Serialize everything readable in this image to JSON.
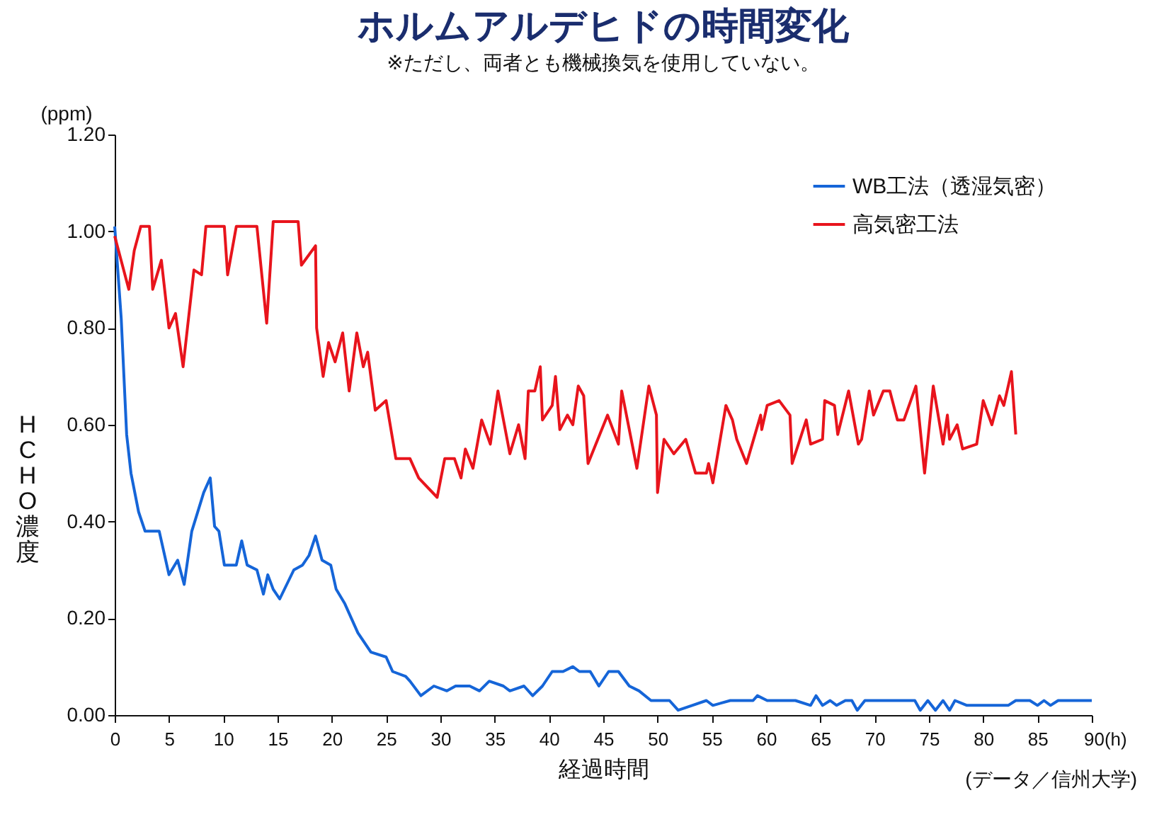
{
  "chart_data": {
    "type": "line",
    "title": "ホルムアルデヒドの時間変化",
    "subtitle": "※ただし、両者とも機械換気を使用していない。",
    "xlabel": "経過時間",
    "ylabel": "HCHO濃度",
    "annotations": [
      "(ppm)",
      "(データ／信州大学)"
    ],
    "xlim": [
      0,
      90
    ],
    "xticks": [
      0,
      5,
      10,
      15,
      20,
      25,
      30,
      35,
      40,
      45,
      50,
      55,
      60,
      65,
      70,
      75,
      80,
      85,
      {
        "value": 90,
        "label": "90(h)"
      }
    ],
    "ylim": [
      0,
      1.2
    ],
    "yticks": [
      {
        "value": 0,
        "label": "0.00"
      },
      {
        "value": 0.2,
        "label": "0.20"
      },
      {
        "value": 0.4,
        "label": "0.40"
      },
      {
        "value": 0.6,
        "label": "0.60"
      },
      {
        "value": 0.8,
        "label": "0.80"
      },
      {
        "value": 1,
        "label": "1.00"
      },
      {
        "value": 1.2,
        "label": "1.20"
      }
    ],
    "grid": false,
    "legend": "top right",
    "marker": "none",
    "line_style": "solid",
    "series": [
      {
        "name": "WB工法（透湿気密）",
        "color": "#1565d8",
        "x": [
          0,
          0.6,
          1.1,
          1.5,
          2.2,
          2.8,
          4.1,
          5,
          5.8,
          6.4,
          7.1,
          8.2,
          8.8,
          9.2,
          9.6,
          10.1,
          11.2,
          11.7,
          12.2,
          13.1,
          13.7,
          14.1,
          14.6,
          15.2,
          16.5,
          17.3,
          17.9,
          18.5,
          19.1,
          19.9,
          20.4,
          21.2,
          22.4,
          23.6,
          25,
          25.6,
          26.8,
          27.2,
          28.2,
          29.4,
          30.6,
          31.4,
          32.7,
          33.6,
          34.5,
          35.8,
          36.4,
          37.7,
          38.5,
          39.4,
          40.3,
          41.3,
          42.2,
          42.8,
          43.8,
          44.6,
          45.5,
          46.4,
          47.4,
          48.3,
          49.4,
          51.1,
          51.9,
          53.2,
          54.5,
          55.1,
          56.7,
          58.8,
          59.2,
          60.1,
          62.7,
          64.1,
          64.6,
          65.2,
          65.9,
          66.5,
          67.3,
          67.9,
          68.4,
          69.1,
          73.7,
          74.2,
          74.9,
          75.6,
          76.3,
          76.9,
          77.4,
          78.5,
          82.3,
          83,
          84.3,
          85,
          85.6,
          86.2,
          86.9,
          90
        ],
        "values": [
          1.01,
          0.82,
          0.58,
          0.5,
          0.42,
          0.38,
          0.38,
          0.29,
          0.32,
          0.27,
          0.38,
          0.46,
          0.49,
          0.39,
          0.38,
          0.31,
          0.31,
          0.36,
          0.31,
          0.3,
          0.25,
          0.29,
          0.26,
          0.24,
          0.3,
          0.31,
          0.33,
          0.37,
          0.32,
          0.31,
          0.26,
          0.23,
          0.17,
          0.13,
          0.12,
          0.09,
          0.08,
          0.07,
          0.04,
          0.06,
          0.05,
          0.06,
          0.06,
          0.05,
          0.07,
          0.06,
          0.05,
          0.06,
          0.04,
          0.06,
          0.09,
          0.09,
          0.1,
          0.09,
          0.09,
          0.06,
          0.09,
          0.09,
          0.06,
          0.05,
          0.03,
          0.03,
          0.01,
          0.02,
          0.03,
          0.02,
          0.03,
          0.03,
          0.04,
          0.03,
          0.03,
          0.02,
          0.04,
          0.02,
          0.03,
          0.02,
          0.03,
          0.03,
          0.01,
          0.03,
          0.03,
          0.01,
          0.03,
          0.01,
          0.03,
          0.01,
          0.03,
          0.02,
          0.02,
          0.03,
          0.03,
          0.02,
          0.03,
          0.02,
          0.03,
          0.03
        ]
      },
      {
        "name": "高気密工法",
        "color": "#e8141c",
        "x": [
          0,
          1.3,
          1.8,
          2.4,
          3.2,
          3.5,
          4.3,
          5,
          5.6,
          6.3,
          7.3,
          8,
          8.4,
          10.1,
          10.4,
          11.2,
          13.1,
          14,
          14.6,
          16.9,
          17.2,
          18.5,
          18.6,
          19.2,
          19.7,
          20.3,
          21,
          21.6,
          22.3,
          22.9,
          23.3,
          24,
          25,
          25.9,
          27.2,
          28,
          29.7,
          30.4,
          31.3,
          31.9,
          32.3,
          33,
          33.8,
          34.6,
          35.3,
          36.4,
          37.2,
          37.8,
          38.1,
          38.7,
          39.2,
          39.4,
          40.3,
          40.6,
          41,
          41.7,
          42.2,
          42.7,
          43.2,
          43.6,
          45.4,
          46.4,
          46.7,
          48.1,
          49.2,
          49.9,
          50,
          50.6,
          51.5,
          52.6,
          53.5,
          54.5,
          54.7,
          55.1,
          56.3,
          56.9,
          57.3,
          58.2,
          59.5,
          59.6,
          60.1,
          61.2,
          62.2,
          62.4,
          63.7,
          64.1,
          65.2,
          65.4,
          66.3,
          66.6,
          67.6,
          68.5,
          68.8,
          69.5,
          69.9,
          70.8,
          71.4,
          72.1,
          72.7,
          73.8,
          74.6,
          75.4,
          76.3,
          76.7,
          76.9,
          77.6,
          78.1,
          79.4,
          80,
          80.8,
          81.5,
          81.9,
          82.6,
          83
        ],
        "values": [
          0.99,
          0.88,
          0.96,
          1.01,
          1.01,
          0.88,
          0.94,
          0.8,
          0.83,
          0.72,
          0.92,
          0.91,
          1.01,
          1.01,
          0.91,
          1.01,
          1.01,
          0.81,
          1.02,
          1.02,
          0.93,
          0.97,
          0.8,
          0.7,
          0.77,
          0.73,
          0.79,
          0.67,
          0.79,
          0.72,
          0.75,
          0.63,
          0.65,
          0.53,
          0.53,
          0.49,
          0.45,
          0.53,
          0.53,
          0.49,
          0.55,
          0.51,
          0.61,
          0.56,
          0.67,
          0.54,
          0.6,
          0.53,
          0.67,
          0.67,
          0.72,
          0.61,
          0.64,
          0.7,
          0.59,
          0.62,
          0.6,
          0.68,
          0.66,
          0.52,
          0.62,
          0.56,
          0.67,
          0.51,
          0.68,
          0.62,
          0.46,
          0.57,
          0.54,
          0.57,
          0.5,
          0.5,
          0.52,
          0.48,
          0.64,
          0.61,
          0.57,
          0.52,
          0.62,
          0.59,
          0.64,
          0.65,
          0.62,
          0.52,
          0.61,
          0.56,
          0.57,
          0.65,
          0.64,
          0.58,
          0.67,
          0.56,
          0.57,
          0.67,
          0.62,
          0.67,
          0.67,
          0.61,
          0.61,
          0.68,
          0.5,
          0.68,
          0.56,
          0.62,
          0.57,
          0.6,
          0.55,
          0.56,
          0.65,
          0.6,
          0.66,
          0.64,
          0.71,
          0.58
        ]
      }
    ]
  }
}
